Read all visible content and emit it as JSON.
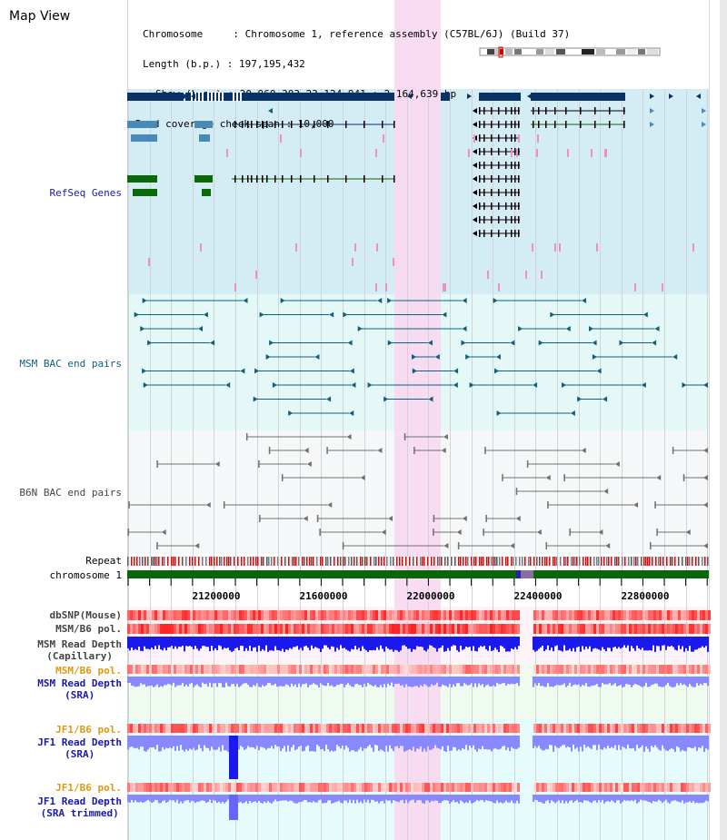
{
  "page": {
    "title": "Map View"
  },
  "info": {
    "chromosome_line": "Chromosome     : Chromosome 1, reference assembly (C57BL/6J) (Build 37)",
    "length_line": "Length (b.p.) : 197,195,432",
    "show_line": "Show (b.p.) : 20,960,303-23,124,941 : 2,164,639 bp",
    "span_line": "Read coverage check span : 10,000"
  },
  "tracks": {
    "refseq": "RefSeq Genes",
    "msm_bac": "MSM BAC end pairs",
    "b6n_bac": "B6N BAC end pairs",
    "repeat": "Repeat",
    "chromosome": "chromosome 1",
    "dbsnp": "dbSNP(Mouse)",
    "msm_b6_pol_1": "MSM/B6 pol.",
    "msm_depth_cap_1": "MSM Read Depth",
    "msm_depth_cap_2": "(Capillary)",
    "msm_b6_pol_2": "MSM/B6 pol.",
    "msm_depth_sra_1": "MSM Read Depth",
    "msm_depth_sra_2": "(SRA)",
    "jf1_b6_pol_1": "JF1/B6 pol.",
    "jf1_depth_sra_1": "JF1 Read Depth",
    "jf1_depth_sra_2": "(SRA)",
    "jf1_b6_pol_2": "JF1/B6 pol.",
    "jf1_depth_trim_1": "JF1 Read Depth",
    "jf1_depth_trim_2": "(SRA trimmed)"
  },
  "axis": {
    "ticks": [
      "21200000",
      "21600000",
      "22000000",
      "22400000",
      "22800000"
    ]
  },
  "colors": {
    "refseq_bg": "#d4ecf4",
    "msm_bac_bg": "#e4f8f8",
    "b6n_bg": "#f4f6f8",
    "highlight": "#f8d8f0",
    "refseq_dark": "#0a3266",
    "refseq_mid": "#4a8ab8",
    "refseq_green": "#0a6a0a",
    "msm_line": "#10607a",
    "b6n_line": "#707070",
    "chrom_green": "#0a660a",
    "depth_blue": "#1a1aee",
    "depth_light": "#8888ff",
    "label_blue": "#1a1aaa",
    "label_teal": "#106080",
    "label_orange": "#dd9911",
    "label_gray": "#444444"
  }
}
